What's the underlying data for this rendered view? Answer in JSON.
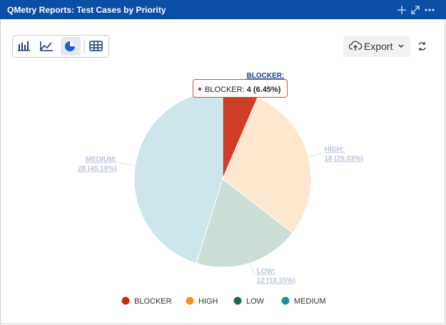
{
  "header": {
    "title": "QMetry Reports: Test Cases by Priority"
  },
  "toolbar": {
    "export": "Export"
  },
  "chart_data": {
    "type": "pie",
    "categories": [
      "BLOCKER",
      "HIGH",
      "LOW",
      "MEDIUM"
    ],
    "slice_labels": [
      "BLOCKER:",
      "HIGH:",
      "LOW:",
      "MEDIUM:"
    ],
    "values": [
      4,
      18,
      12,
      28
    ],
    "value_labels": [
      "4 (6.45%)",
      "18 (29.03%)",
      "12 (19.35%)",
      "28 (45.16%)"
    ],
    "colors": [
      "#c9290f",
      "#f6901e",
      "#1a6b4b",
      "#1d8fa3"
    ],
    "active_index": 0
  }
}
